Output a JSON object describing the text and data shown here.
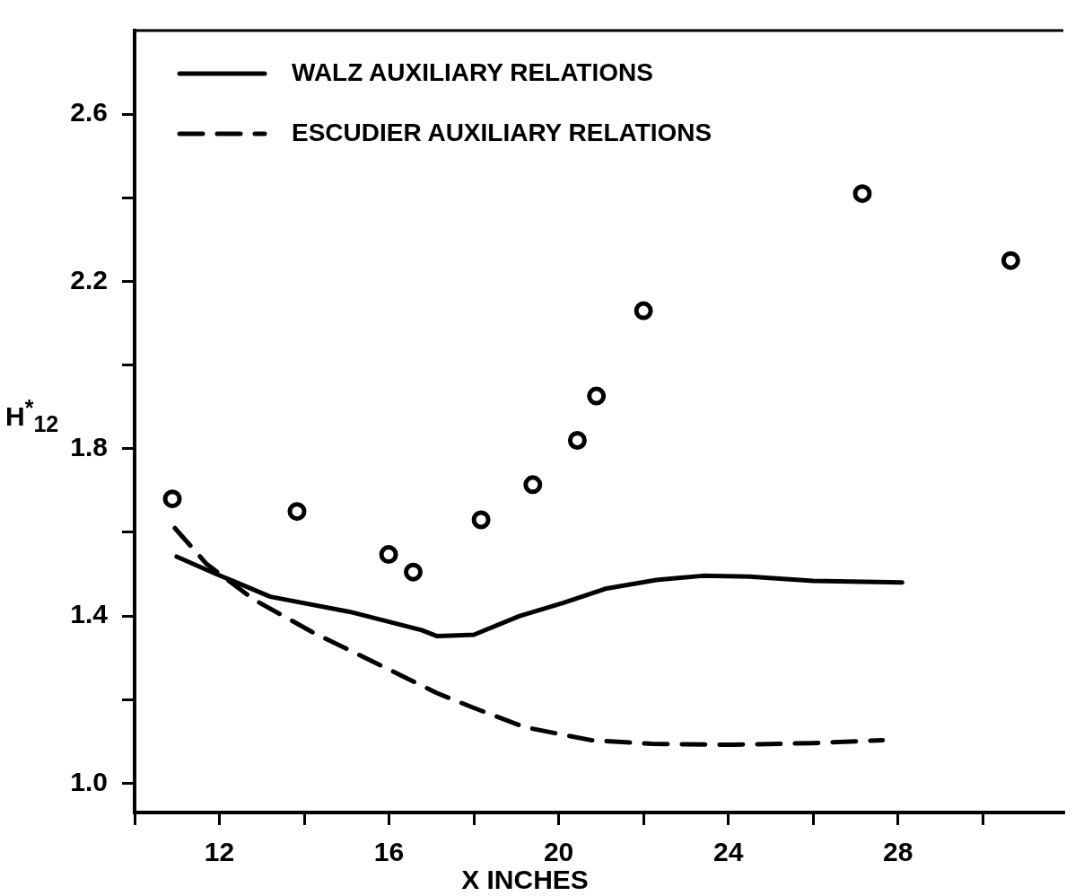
{
  "chart_data": {
    "type": "line",
    "xlabel": "X INCHES",
    "ylabel": "H$^{*}$$_{12}$",
    "xlim": [
      10,
      31.9
    ],
    "ylim": [
      0.93,
      2.8
    ],
    "xticks": [
      {
        "value": 10,
        "label": null
      },
      12,
      {
        "value": 14,
        "label": null
      },
      16,
      {
        "value": 18,
        "label": null
      },
      20,
      {
        "value": 22,
        "label": null
      },
      24,
      {
        "value": 26,
        "label": null
      },
      28,
      {
        "value": 30,
        "label": null
      }
    ],
    "yticks": [
      {
        "value": 1.0,
        "label": "1.0"
      },
      {
        "value": 1.2,
        "label": null
      },
      1.4,
      {
        "value": 1.6,
        "label": null
      },
      1.8,
      {
        "value": 2.0,
        "label": null
      },
      2.2,
      {
        "value": 2.4,
        "label": null
      },
      2.6
    ],
    "grid": false,
    "legend": "top left",
    "series": [
      {
        "name": "WALZ AUXILIARY RELATIONS",
        "color": "#000000",
        "line_style": "solid",
        "marker": "none",
        "x": [
          10.99,
          11.98,
          13.2,
          15.07,
          16.77,
          17.12,
          18.0,
          19.08,
          20.1,
          21.1,
          22.3,
          23.4,
          24.5,
          26.0,
          28.1
        ],
        "values": [
          1.542,
          1.498,
          1.446,
          1.41,
          1.366,
          1.352,
          1.355,
          1.4,
          1.431,
          1.465,
          1.486,
          1.496,
          1.494,
          1.484,
          1.48
        ]
      },
      {
        "name": "ESCUDIER AUXILIARY RELATIONS",
        "color": "#000000",
        "line_style": "dashed",
        "marker": "none",
        "x": [
          10.95,
          11.7,
          12.8,
          14.18,
          15.74,
          17.12,
          18.0,
          19.2,
          20.76,
          22.2,
          24.1,
          26.0,
          27.64
        ],
        "values": [
          1.61,
          1.524,
          1.44,
          1.362,
          1.285,
          1.216,
          1.18,
          1.134,
          1.103,
          1.094,
          1.092,
          1.096,
          1.103
        ]
      },
      {
        "type": "scatter",
        "color": "#000000",
        "marker": "circle",
        "x": [
          10.89,
          13.83,
          15.99,
          16.57,
          18.17,
          19.39,
          20.44,
          20.89,
          22.0,
          27.16,
          30.66
        ],
        "values": [
          1.68,
          1.65,
          1.547,
          1.505,
          1.63,
          1.714,
          1.82,
          1.926,
          2.13,
          2.41,
          2.25
        ]
      }
    ]
  }
}
